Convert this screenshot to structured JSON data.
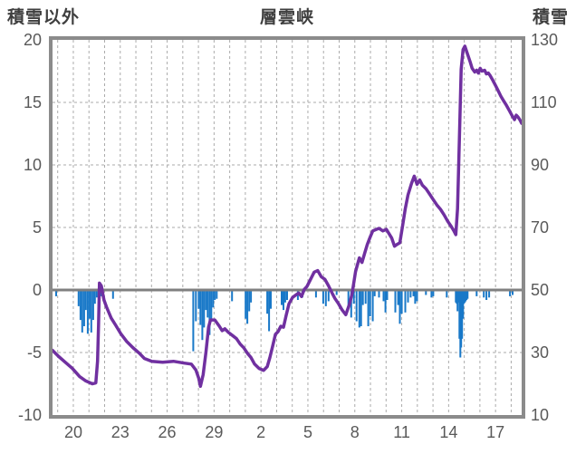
{
  "titles": {
    "left_axis": "積雪以外",
    "center": "層雲峡",
    "right_axis": "積雪"
  },
  "colors": {
    "line": "#7030A0",
    "bars": "#1878C8",
    "border": "#8b8b8b",
    "grid": "#ababab",
    "zero_line": "#808080",
    "text": "#595959",
    "title_text": "#3f3f3f"
  },
  "chart_data": {
    "type": "line+bar",
    "title": "層雲峡",
    "grid": true,
    "left_axis": {
      "label": "積雪以外",
      "range": [
        -10,
        20
      ],
      "ticks": [
        "20",
        "15",
        "10",
        "5",
        "0",
        "-5",
        "-10"
      ],
      "grid_values": [
        15,
        10,
        5,
        -5
      ],
      "zero_value": 0
    },
    "right_axis": {
      "label": "積雪",
      "range": [
        10,
        130
      ],
      "ticks": [
        "130",
        "110",
        "90",
        "70",
        "50",
        "30",
        "10"
      ]
    },
    "x_axis": {
      "range": [
        0,
        30
      ],
      "unit": "day",
      "tick_labels": [
        "20",
        "23",
        "26",
        "29",
        "2",
        "5",
        "8",
        "11",
        "14",
        "17"
      ],
      "tick_u": [
        1.33,
        4.33,
        7.33,
        10.33,
        13.33,
        16.33,
        19.33,
        22.33,
        25.33,
        28.33
      ],
      "gridline_start": 0.33,
      "gridline_step": 1,
      "gridline_count": 30
    },
    "series": [
      {
        "name": "積雪",
        "type": "line",
        "axis": "right",
        "points": [
          [
            0,
            30.7
          ],
          [
            0.4,
            28.7
          ],
          [
            0.81,
            26.9
          ],
          [
            1.27,
            24.9
          ],
          [
            1.73,
            22.3
          ],
          [
            2.13,
            20.9
          ],
          [
            2.54,
            20.0
          ],
          [
            2.77,
            20.3
          ],
          [
            2.88,
            27.2
          ],
          [
            2.94,
            38.7
          ],
          [
            3.0,
            52.2
          ],
          [
            3.12,
            51.3
          ],
          [
            3.29,
            46.8
          ],
          [
            3.46,
            44.5
          ],
          [
            3.75,
            41.0
          ],
          [
            4.04,
            38.7
          ],
          [
            4.38,
            35.9
          ],
          [
            4.73,
            33.6
          ],
          [
            5.13,
            31.6
          ],
          [
            5.54,
            29.8
          ],
          [
            5.88,
            28.1
          ],
          [
            6.35,
            27.2
          ],
          [
            7.04,
            26.9
          ],
          [
            7.73,
            27.2
          ],
          [
            8.42,
            26.6
          ],
          [
            8.88,
            26.3
          ],
          [
            9.17,
            24.4
          ],
          [
            9.35,
            21.8
          ],
          [
            9.46,
            19.2
          ],
          [
            9.63,
            22.9
          ],
          [
            9.81,
            30.1
          ],
          [
            9.98,
            38.1
          ],
          [
            10.1,
            40.4
          ],
          [
            10.38,
            40.4
          ],
          [
            10.67,
            38.4
          ],
          [
            10.85,
            37.0
          ],
          [
            11.02,
            37.6
          ],
          [
            11.25,
            36.4
          ],
          [
            11.54,
            35.3
          ],
          [
            11.77,
            34.4
          ],
          [
            12.0,
            32.7
          ],
          [
            12.23,
            31.5
          ],
          [
            12.46,
            29.8
          ],
          [
            12.69,
            28.4
          ],
          [
            12.92,
            26.3
          ],
          [
            13.21,
            24.9
          ],
          [
            13.5,
            24.3
          ],
          [
            13.73,
            25.5
          ],
          [
            13.9,
            28.4
          ],
          [
            14.08,
            32.1
          ],
          [
            14.25,
            35.8
          ],
          [
            14.42,
            36.7
          ],
          [
            14.6,
            38.4
          ],
          [
            14.77,
            38.1
          ],
          [
            14.94,
            41.9
          ],
          [
            15.12,
            45.6
          ],
          [
            15.35,
            47.6
          ],
          [
            15.58,
            48.5
          ],
          [
            15.75,
            49.0
          ],
          [
            15.92,
            47.9
          ],
          [
            16.1,
            50.2
          ],
          [
            16.27,
            51.1
          ],
          [
            16.5,
            53.4
          ],
          [
            16.73,
            55.7
          ],
          [
            16.96,
            56.2
          ],
          [
            17.19,
            54.2
          ],
          [
            17.42,
            53.4
          ],
          [
            17.65,
            51.3
          ],
          [
            17.88,
            49.0
          ],
          [
            18.06,
            47.3
          ],
          [
            18.29,
            45.6
          ],
          [
            18.52,
            43.6
          ],
          [
            18.75,
            42.1
          ],
          [
            18.98,
            45.3
          ],
          [
            19.15,
            48.7
          ],
          [
            19.38,
            55.9
          ],
          [
            19.62,
            60.3
          ],
          [
            19.79,
            58.8
          ],
          [
            19.96,
            61.7
          ],
          [
            20.13,
            64.6
          ],
          [
            20.31,
            66.9
          ],
          [
            20.48,
            68.9
          ],
          [
            20.71,
            69.4
          ],
          [
            20.88,
            69.7
          ],
          [
            21.12,
            68.9
          ],
          [
            21.35,
            69.4
          ],
          [
            21.52,
            68.0
          ],
          [
            21.69,
            66.6
          ],
          [
            21.87,
            64.0
          ],
          [
            22.04,
            64.6
          ],
          [
            22.21,
            65.1
          ],
          [
            22.38,
            70.3
          ],
          [
            22.56,
            76.0
          ],
          [
            22.73,
            80.4
          ],
          [
            22.96,
            84.1
          ],
          [
            23.13,
            86.4
          ],
          [
            23.31,
            83.8
          ],
          [
            23.48,
            85.2
          ],
          [
            23.65,
            83.5
          ],
          [
            23.88,
            82.4
          ],
          [
            24.12,
            80.6
          ],
          [
            24.35,
            78.9
          ],
          [
            24.58,
            77.2
          ],
          [
            24.81,
            75.8
          ],
          [
            25.04,
            74.0
          ],
          [
            25.27,
            72.0
          ],
          [
            25.5,
            70.3
          ],
          [
            25.67,
            68.9
          ],
          [
            25.79,
            67.7
          ],
          [
            25.9,
            76.0
          ],
          [
            26.02,
            99.0
          ],
          [
            26.13,
            120.6
          ],
          [
            26.25,
            126.9
          ],
          [
            26.37,
            128.0
          ],
          [
            26.54,
            125.4
          ],
          [
            26.71,
            122.9
          ],
          [
            26.83,
            120.9
          ],
          [
            27.0,
            119.7
          ],
          [
            27.12,
            120.3
          ],
          [
            27.23,
            119.4
          ],
          [
            27.35,
            120.9
          ],
          [
            27.46,
            120.0
          ],
          [
            27.63,
            120.3
          ],
          [
            27.75,
            119.1
          ],
          [
            27.87,
            119.4
          ],
          [
            27.98,
            118.6
          ],
          [
            28.15,
            117.1
          ],
          [
            28.33,
            115.4
          ],
          [
            28.5,
            113.7
          ],
          [
            28.67,
            112.0
          ],
          [
            28.85,
            110.5
          ],
          [
            29.02,
            109.1
          ],
          [
            29.19,
            107.6
          ],
          [
            29.37,
            105.9
          ],
          [
            29.54,
            104.5
          ],
          [
            29.65,
            105.9
          ],
          [
            29.77,
            105.3
          ],
          [
            29.88,
            104.5
          ],
          [
            30.0,
            103.3
          ]
        ]
      },
      {
        "name": "積雪以外",
        "type": "bar",
        "axis": "left",
        "points": [
          [
            0.23,
            -0.5
          ],
          [
            1.67,
            -1.3
          ],
          [
            1.79,
            -2.4
          ],
          [
            1.9,
            -3.4
          ],
          [
            2.02,
            -2.9
          ],
          [
            2.13,
            -1.6
          ],
          [
            2.25,
            -3.5
          ],
          [
            2.37,
            -2.3
          ],
          [
            2.48,
            -3.4
          ],
          [
            2.6,
            -2.4
          ],
          [
            2.71,
            -1.1
          ],
          [
            2.83,
            -0.6
          ],
          [
            3.0,
            -0.6
          ],
          [
            3.12,
            -0.5
          ],
          [
            3.87,
            -0.7
          ],
          [
            9.0,
            -4.9
          ],
          [
            9.17,
            -2.5
          ],
          [
            9.35,
            -1.5
          ],
          [
            9.46,
            -2.8
          ],
          [
            9.58,
            -4.0
          ],
          [
            9.69,
            -3.0
          ],
          [
            9.81,
            -1.6
          ],
          [
            9.92,
            -2.2
          ],
          [
            10.04,
            -3.6
          ],
          [
            10.15,
            -2.4
          ],
          [
            10.27,
            -1.4
          ],
          [
            10.38,
            -0.8
          ],
          [
            10.5,
            -0.7
          ],
          [
            11.48,
            -0.9
          ],
          [
            12.35,
            -2.3
          ],
          [
            12.46,
            -2.7
          ],
          [
            12.58,
            -1.7
          ],
          [
            12.69,
            -1.0
          ],
          [
            13.73,
            -1.9
          ],
          [
            13.85,
            -3.3
          ],
          [
            13.96,
            -1.5
          ],
          [
            14.65,
            -1.2
          ],
          [
            14.77,
            -1.6
          ],
          [
            14.88,
            -1.0
          ],
          [
            15.0,
            -0.8
          ],
          [
            15.69,
            -0.8
          ],
          [
            15.98,
            -0.6
          ],
          [
            16.85,
            -0.6
          ],
          [
            17.31,
            -1.1
          ],
          [
            17.48,
            -1.3
          ],
          [
            17.65,
            -0.9
          ],
          [
            18.17,
            -0.4
          ],
          [
            18.92,
            -1.3
          ],
          [
            19.1,
            -2.2
          ],
          [
            19.27,
            -1.1
          ],
          [
            19.44,
            -2.5
          ],
          [
            19.62,
            -3.0
          ],
          [
            19.73,
            -2.9
          ],
          [
            19.85,
            -1.2
          ],
          [
            20.02,
            -1.1
          ],
          [
            20.19,
            -2.9
          ],
          [
            20.31,
            -2.1
          ],
          [
            20.48,
            -2.5
          ],
          [
            20.6,
            -0.5
          ],
          [
            20.88,
            -0.6
          ],
          [
            21.17,
            -0.9
          ],
          [
            21.29,
            -1.8
          ],
          [
            21.4,
            -0.8
          ],
          [
            21.92,
            -1.8
          ],
          [
            22.1,
            -1.2
          ],
          [
            22.21,
            -2.7
          ],
          [
            22.33,
            -1.9
          ],
          [
            22.56,
            -1.8
          ],
          [
            22.73,
            -1.0
          ],
          [
            22.9,
            -0.6
          ],
          [
            23.08,
            -0.5
          ],
          [
            23.19,
            -1.1
          ],
          [
            23.31,
            -0.9
          ],
          [
            23.88,
            -0.4
          ],
          [
            24.23,
            -0.6
          ],
          [
            24.35,
            -0.5
          ],
          [
            25.21,
            -0.6
          ],
          [
            25.79,
            -1.0
          ],
          [
            25.85,
            -1.1
          ],
          [
            25.9,
            -1.7
          ],
          [
            25.96,
            -1.0
          ],
          [
            26.02,
            -3.9
          ],
          [
            26.08,
            -5.4
          ],
          [
            26.13,
            -4.6
          ],
          [
            26.19,
            -3.9
          ],
          [
            26.25,
            -2.3
          ],
          [
            26.31,
            -1.1
          ],
          [
            26.37,
            -1.0
          ],
          [
            26.42,
            -0.9
          ],
          [
            26.48,
            -0.8
          ],
          [
            26.54,
            -0.7
          ],
          [
            27.12,
            -0.5
          ],
          [
            27.58,
            -0.6
          ],
          [
            27.75,
            -0.8
          ],
          [
            27.92,
            -0.6
          ],
          [
            29.25,
            -0.5
          ],
          [
            29.42,
            -0.4
          ]
        ]
      }
    ]
  }
}
